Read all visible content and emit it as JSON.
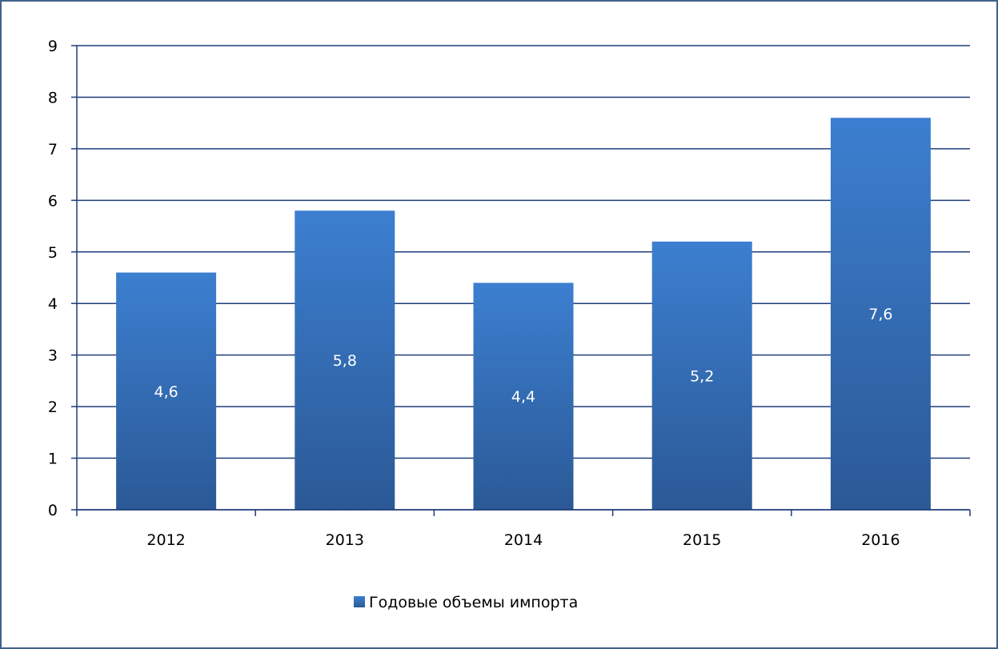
{
  "chart_data": {
    "type": "bar",
    "categories": [
      "2012",
      "2013",
      "2014",
      "2015",
      "2016"
    ],
    "series": [
      {
        "name": "Годовые объемы импорта",
        "values": [
          4.6,
          5.8,
          4.4,
          5.2,
          7.6
        ],
        "labels": [
          "4,6",
          "5,8",
          "4,4",
          "5,2",
          "7,6"
        ]
      }
    ],
    "title": "",
    "xlabel": "",
    "ylabel": "",
    "ylim": [
      0,
      9
    ],
    "yticks": [
      "0",
      "1",
      "2",
      "3",
      "4",
      "5",
      "6",
      "7",
      "8",
      "9"
    ],
    "grid": true,
    "legend": "bottom",
    "colors": {
      "bar_top": "#3c7fd0",
      "bar_bottom": "#2b5996",
      "grid": "#1f3d7a",
      "frame": "#41618c"
    }
  }
}
